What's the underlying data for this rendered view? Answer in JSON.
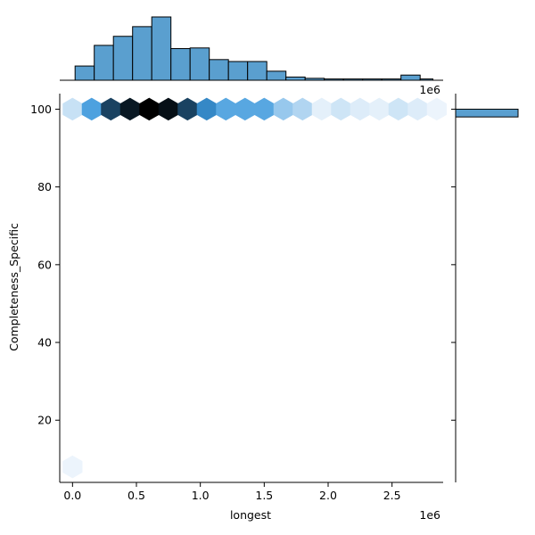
{
  "chart_data": {
    "type": "hexbin-jointplot",
    "xlabel": "longest",
    "ylabel": "Completeness_Specific",
    "x_offset_label": "1e6",
    "top_offset_label": "1e6",
    "xlim": [
      -0.1,
      2.9
    ],
    "ylim": [
      4,
      104
    ],
    "xticks": [
      0.0,
      0.5,
      1.0,
      1.5,
      2.0,
      2.5
    ],
    "xtick_labels": [
      "0.0",
      "0.5",
      "1.0",
      "1.5",
      "2.0",
      "2.5"
    ],
    "yticks": [
      20,
      40,
      60,
      80,
      100
    ],
    "ytick_labels": [
      "20",
      "40",
      "60",
      "80",
      "100"
    ],
    "hexbins": [
      {
        "x": 0.0,
        "y": 8,
        "level": 0.02
      },
      {
        "x": 0.0,
        "y": 100,
        "level": 0.12
      },
      {
        "x": 0.15,
        "y": 100,
        "level": 0.45
      },
      {
        "x": 0.3,
        "y": 100,
        "level": 0.78
      },
      {
        "x": 0.45,
        "y": 100,
        "level": 0.92
      },
      {
        "x": 0.6,
        "y": 100,
        "level": 1.0
      },
      {
        "x": 0.75,
        "y": 100,
        "level": 0.95
      },
      {
        "x": 0.9,
        "y": 100,
        "level": 0.78
      },
      {
        "x": 1.05,
        "y": 100,
        "level": 0.55
      },
      {
        "x": 1.2,
        "y": 100,
        "level": 0.42
      },
      {
        "x": 1.35,
        "y": 100,
        "level": 0.42
      },
      {
        "x": 1.5,
        "y": 100,
        "level": 0.42
      },
      {
        "x": 1.65,
        "y": 100,
        "level": 0.25
      },
      {
        "x": 1.8,
        "y": 100,
        "level": 0.18
      },
      {
        "x": 1.95,
        "y": 100,
        "level": 0.04
      },
      {
        "x": 2.1,
        "y": 100,
        "level": 0.1
      },
      {
        "x": 2.25,
        "y": 100,
        "level": 0.06
      },
      {
        "x": 2.4,
        "y": 100,
        "level": 0.04
      },
      {
        "x": 2.55,
        "y": 100,
        "level": 0.1
      },
      {
        "x": 2.7,
        "y": 100,
        "level": 0.06
      },
      {
        "x": 2.85,
        "y": 100,
        "level": 0.02
      }
    ],
    "top_histogram": {
      "bin_edges": [
        0.02,
        0.17,
        0.32,
        0.47,
        0.62,
        0.77,
        0.92,
        1.07,
        1.22,
        1.37,
        1.52,
        1.67,
        1.82,
        1.97,
        2.12,
        2.27,
        2.42,
        2.57,
        2.72,
        2.82
      ],
      "counts": [
        22,
        54,
        68,
        83,
        98,
        49,
        50,
        32,
        29,
        29,
        14,
        5,
        3,
        2,
        2,
        2,
        2,
        8,
        2
      ]
    },
    "right_histogram": {
      "bins": [
        {
          "y0": 98,
          "y1": 100,
          "count": 1
        }
      ]
    }
  },
  "colors": {
    "bar_fill": "#5a9fcf",
    "bar_edge": "#000000",
    "hex_light": "#f3f8fd",
    "hex_mid": "#3b97dc",
    "hex_dark": "#000000"
  }
}
